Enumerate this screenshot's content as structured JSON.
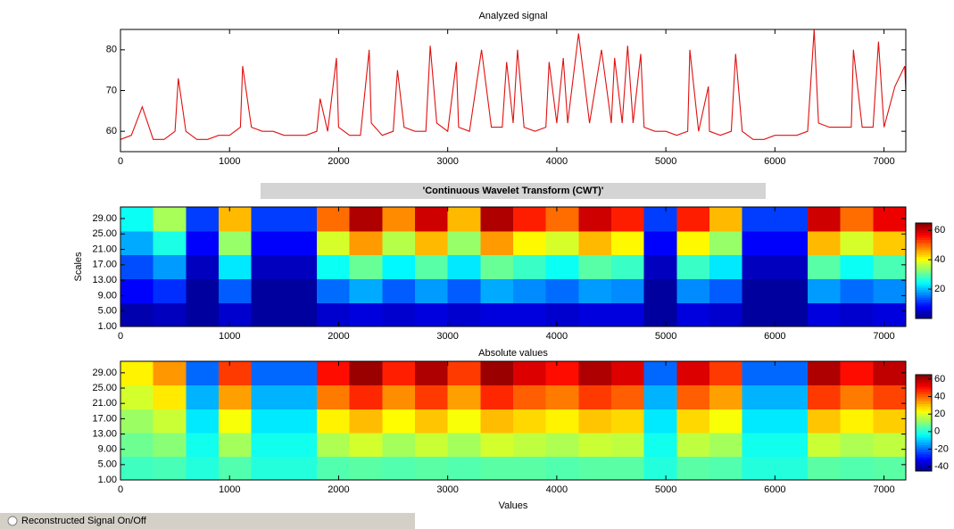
{
  "chart_data": [
    {
      "type": "line",
      "title": "Analyzed signal",
      "color": "#e01010",
      "x": [
        0,
        100,
        200,
        300,
        400,
        500,
        530,
        600,
        700,
        800,
        900,
        1000,
        1100,
        1120,
        1200,
        1300,
        1400,
        1500,
        1600,
        1700,
        1800,
        1830,
        1900,
        1980,
        2000,
        2100,
        2200,
        2280,
        2300,
        2400,
        2500,
        2540,
        2600,
        2700,
        2800,
        2840,
        2900,
        3000,
        3080,
        3100,
        3200,
        3310,
        3400,
        3500,
        3540,
        3600,
        3640,
        3700,
        3800,
        3900,
        3930,
        4000,
        4060,
        4100,
        4200,
        4300,
        4410,
        4500,
        4530,
        4600,
        4650,
        4700,
        4770,
        4800,
        4900,
        5000,
        5100,
        5200,
        5220,
        5300,
        5390,
        5400,
        5500,
        5600,
        5640,
        5700,
        5800,
        5900,
        6000,
        6100,
        6200,
        6300,
        6360,
        6400,
        6500,
        6600,
        6700,
        6720,
        6800,
        6900,
        6950,
        7000,
        7100,
        7190,
        7200
      ],
      "values": [
        58,
        59,
        66,
        58,
        58,
        60,
        73,
        60,
        58,
        58,
        59,
        59,
        61,
        76,
        61,
        60,
        60,
        59,
        59,
        59,
        60,
        68,
        60,
        78,
        61,
        59,
        59,
        80,
        62,
        59,
        60,
        75,
        61,
        60,
        60,
        81,
        62,
        60,
        77,
        61,
        60,
        80,
        61,
        61,
        77,
        62,
        80,
        61,
        60,
        61,
        77,
        62,
        78,
        62,
        84,
        62,
        80,
        62,
        78,
        62,
        81,
        62,
        79,
        61,
        60,
        60,
        59,
        60,
        80,
        60,
        71,
        60,
        59,
        60,
        79,
        60,
        58,
        58,
        59,
        59,
        59,
        60,
        85,
        62,
        61,
        61,
        61,
        80,
        61,
        61,
        82,
        61,
        71,
        76,
        70
      ],
      "xlim": [
        0,
        7200
      ],
      "xticks": [
        0,
        1000,
        2000,
        3000,
        4000,
        5000,
        6000,
        7000
      ],
      "ylim": [
        55,
        85
      ],
      "yticks": [
        60,
        70,
        80
      ]
    },
    {
      "type": "heatmap",
      "title": "'Continuous Wavelet Transform (CWT)'",
      "ylabel": "Scales",
      "colormap": "jet",
      "values": [
        [
          3,
          4,
          2,
          5,
          2,
          2,
          5,
          6,
          5,
          6,
          5,
          6,
          6,
          5,
          6,
          6,
          2,
          6,
          5,
          2,
          2,
          6,
          5,
          6
        ],
        [
          8,
          11,
          2,
          14,
          2,
          2,
          15,
          19,
          14,
          18,
          14,
          19,
          17,
          15,
          18,
          17,
          2,
          17,
          14,
          2,
          2,
          18,
          15,
          17
        ],
        [
          13,
          18,
          4,
          23,
          4,
          4,
          25,
          31,
          24,
          30,
          23,
          31,
          28,
          25,
          30,
          28,
          4,
          28,
          23,
          4,
          4,
          30,
          25,
          29
        ],
        [
          19,
          26,
          8,
          34,
          8,
          8,
          38,
          47,
          36,
          45,
          34,
          47,
          41,
          38,
          45,
          41,
          8,
          41,
          34,
          8,
          8,
          45,
          38,
          44
        ],
        [
          25,
          35,
          12,
          45,
          12,
          12,
          50,
          62,
          48,
          60,
          45,
          62,
          55,
          50,
          60,
          55,
          12,
          55,
          45,
          12,
          12,
          60,
          50,
          58
        ]
      ],
      "xlim": [
        0,
        7200
      ],
      "xticks": [
        0,
        1000,
        2000,
        3000,
        4000,
        5000,
        6000,
        7000
      ],
      "ylim": [
        1,
        32
      ],
      "yticks": [
        {
          "value": 1,
          "label": "1.00"
        },
        {
          "value": 5,
          "label": "5.00"
        },
        {
          "value": 9,
          "label": "9.00"
        },
        {
          "value": 13,
          "label": "13.00"
        },
        {
          "value": 17,
          "label": "17.00"
        },
        {
          "value": 21,
          "label": "21.00"
        },
        {
          "value": 25,
          "label": "25.00"
        },
        {
          "value": 29,
          "label": "29.00"
        }
      ],
      "clim": [
        0,
        65
      ],
      "cticks": [
        20,
        40,
        60
      ]
    },
    {
      "type": "heatmap",
      "title": "Absolute values",
      "xlabel": "Values",
      "colormap": "jet",
      "values": [
        [
          3,
          4,
          0,
          5,
          0,
          0,
          5,
          6,
          5,
          6,
          5,
          6,
          6,
          5,
          6,
          6,
          0,
          6,
          5,
          0,
          0,
          6,
          5,
          6
        ],
        [
          8,
          11,
          -2,
          14,
          -2,
          -2,
          15,
          19,
          14,
          18,
          14,
          19,
          17,
          15,
          18,
          17,
          -2,
          17,
          14,
          -2,
          -2,
          18,
          15,
          17
        ],
        [
          13,
          18,
          -6,
          23,
          -6,
          -6,
          25,
          31,
          24,
          30,
          23,
          31,
          28,
          25,
          30,
          28,
          -6,
          28,
          23,
          -6,
          -6,
          30,
          25,
          29
        ],
        [
          19,
          26,
          -12,
          34,
          -12,
          -12,
          38,
          47,
          36,
          45,
          34,
          47,
          41,
          38,
          45,
          41,
          -12,
          41,
          34,
          -12,
          -12,
          45,
          38,
          44
        ],
        [
          25,
          35,
          -20,
          45,
          -20,
          -20,
          50,
          62,
          48,
          60,
          45,
          62,
          55,
          50,
          60,
          55,
          -20,
          55,
          45,
          -20,
          -20,
          60,
          50,
          58
        ]
      ],
      "xlim": [
        0,
        7200
      ],
      "xticks": [
        0,
        1000,
        2000,
        3000,
        4000,
        5000,
        6000,
        7000
      ],
      "ylim": [
        1,
        32
      ],
      "yticks": [
        {
          "value": 1,
          "label": "1.00"
        },
        {
          "value": 5,
          "label": "5.00"
        },
        {
          "value": 9,
          "label": "9.00"
        },
        {
          "value": 13,
          "label": "13.00"
        },
        {
          "value": 17,
          "label": "17.00"
        },
        {
          "value": 21,
          "label": "21.00"
        },
        {
          "value": 25,
          "label": "25.00"
        },
        {
          "value": 29,
          "label": "29.00"
        }
      ],
      "clim": [
        -45,
        65
      ],
      "cticks": [
        -40,
        -20,
        0,
        20,
        40,
        60
      ]
    }
  ],
  "controls": {
    "radio_label": "Reconstructed Signal On/Off"
  }
}
